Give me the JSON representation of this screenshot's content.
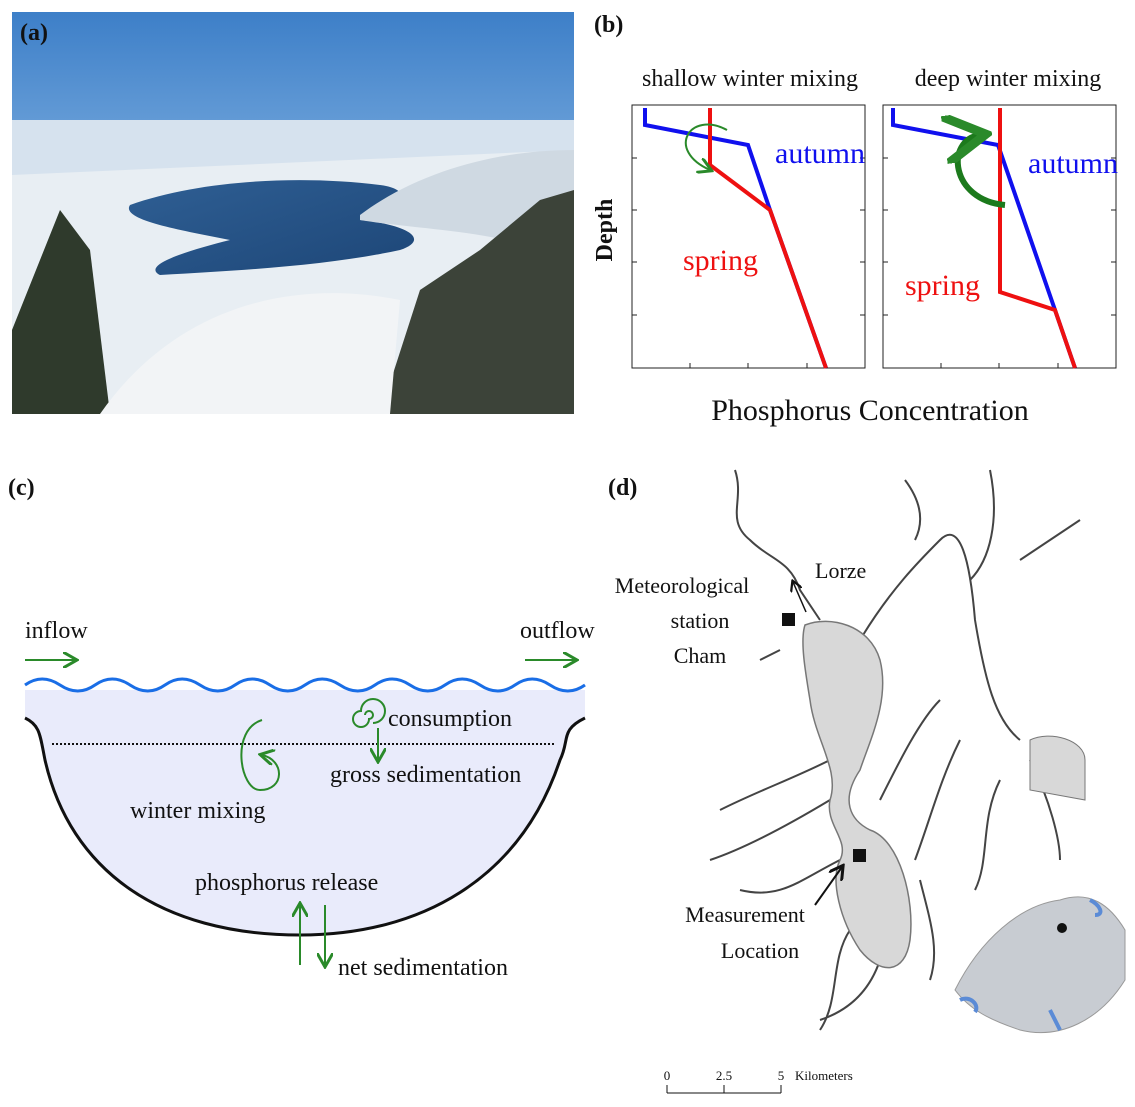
{
  "panels": {
    "a": {
      "label": "(a)"
    },
    "b": {
      "label": "(b)",
      "left_title": "shallow winter mixing",
      "right_title": "deep winter mixing",
      "left_autumn": "autumn",
      "left_spring": "spring",
      "right_autumn": "autumn",
      "right_spring": "spring",
      "y_label": "Depth",
      "x_label": "Phosphorus Concentration"
    },
    "c": {
      "label": "(c)",
      "inflow": "inflow",
      "outflow": "outflow",
      "consumption": "consumption",
      "gross_sedimentation": "gross sedimentation",
      "winter_mixing": "winter mixing",
      "phosphorus_release": "phosphorus release",
      "net_sedimentation": "net sedimentation"
    },
    "d": {
      "label": "(d)",
      "river": "Lorze",
      "station": [
        "Meteorological",
        "station",
        "Cham"
      ],
      "measurement": [
        "Measurement",
        "Location"
      ],
      "scale_ticks": [
        "0",
        "2.5",
        "5"
      ],
      "scale_unit": "Kilometers"
    }
  }
}
